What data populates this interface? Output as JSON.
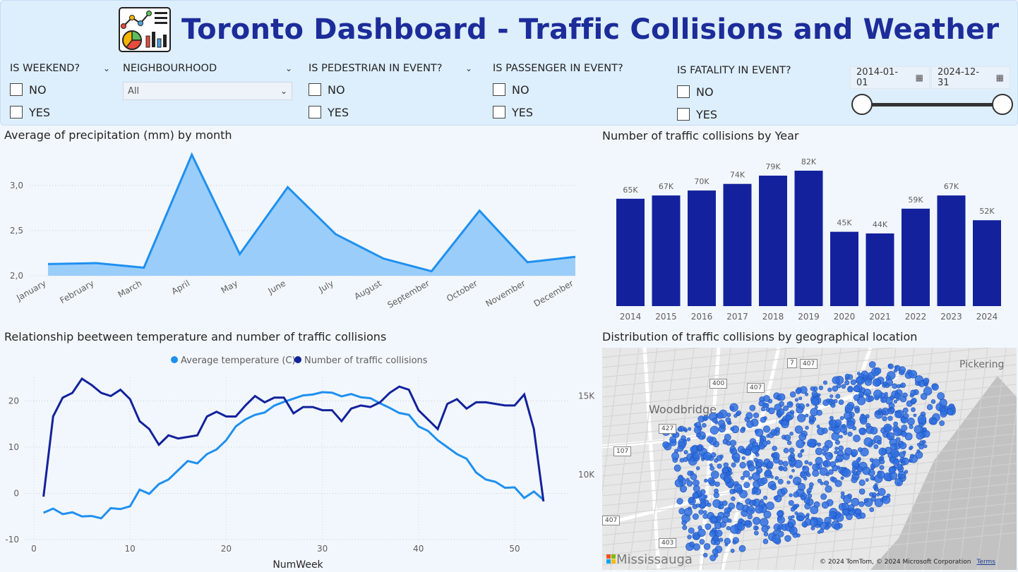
{
  "header": {
    "title": "Toronto Dashboard - Traffic Collisions and Weather",
    "logo_icon": "analytics-dashboard-icon"
  },
  "filters": {
    "weekend": {
      "label": "IS WEEKEND?",
      "options": [
        "NO",
        "YES"
      ]
    },
    "neighbourhood": {
      "label": "NEIGHBOURHOOD",
      "value": "All"
    },
    "pedestrian": {
      "label": "IS PEDESTRIAN IN EVENT?",
      "options": [
        "NO",
        "YES"
      ]
    },
    "passenger": {
      "label": "IS PASSENGER IN EVENT?",
      "options": [
        "NO",
        "YES"
      ]
    },
    "fatality": {
      "label": "IS FATALITY IN EVENT?",
      "options": [
        "NO",
        "YES"
      ]
    },
    "date_range": {
      "start": "2014-01-01",
      "end": "2024-12-31",
      "slider_start": 0.0,
      "slider_end": 1.0
    }
  },
  "charts": {
    "precip_title": "Average of precipitation (mm) by month",
    "collisions_title": "Number of traffic collisions by Year",
    "relationship_title": "Relationship beetween temperature and number of traffic collisions",
    "map_title": "Distribution of traffic collisions by geographical location"
  },
  "map": {
    "labels": {
      "woodbridge": "Woodbridge",
      "pickering": "Pickering",
      "mississauga": "Mississauga"
    },
    "shields": [
      "7",
      "407",
      "400",
      "407",
      "427",
      "107",
      "407",
      "403"
    ],
    "credit": "© 2024 TomTom, © 2024 Microsoft Corporation",
    "terms": "Terms",
    "point_color": "#2f6fe0"
  },
  "chart_data": [
    {
      "type": "area",
      "title": "Average of precipitation (mm) by month",
      "categories": [
        "January",
        "February",
        "March",
        "April",
        "May",
        "June",
        "July",
        "August",
        "September",
        "October",
        "November",
        "December"
      ],
      "values": [
        2.13,
        2.14,
        2.09,
        3.34,
        2.24,
        2.98,
        2.46,
        2.19,
        2.05,
        2.72,
        2.15,
        2.21
      ],
      "yticks": [
        "2,0",
        "2,5",
        "3,0"
      ],
      "ylim": [
        2.0,
        3.35
      ],
      "color": "#1e90f0",
      "fill": "#9bcdfa"
    },
    {
      "type": "bar",
      "title": "Number of traffic collisions by Year",
      "categories": [
        "2014",
        "2015",
        "2016",
        "2017",
        "2018",
        "2019",
        "2020",
        "2021",
        "2022",
        "2023",
        "2024"
      ],
      "values": [
        65,
        67,
        70,
        74,
        79,
        82,
        45,
        44,
        59,
        67,
        52
      ],
      "data_labels": [
        "65K",
        "67K",
        "70K",
        "74K",
        "79K",
        "82K",
        "45K",
        "44K",
        "59K",
        "67K",
        "52K"
      ],
      "ylim": [
        0,
        82
      ],
      "color": "#13229c"
    },
    {
      "type": "line",
      "title": "Relationship beetween temperature and number of traffic collisions",
      "xlabel": "NumWeek",
      "xticks": [
        "0",
        "10",
        "20",
        "30",
        "40",
        "50"
      ],
      "y1ticks": [
        "-10",
        "0",
        "10",
        "20"
      ],
      "y2ticks": [
        "10K",
        "15K"
      ],
      "y1lim": [
        -10,
        25
      ],
      "y2lim": [
        7500,
        17000
      ],
      "series": [
        {
          "name": "Average temperature (C)",
          "axis": "left",
          "color": "#1e90f0",
          "x": [
            1,
            2,
            3,
            4,
            5,
            6,
            7,
            8,
            9,
            10,
            11,
            12,
            13,
            14,
            15,
            16,
            17,
            18,
            19,
            20,
            21,
            22,
            23,
            24,
            25,
            26,
            27,
            28,
            29,
            30,
            31,
            32,
            33,
            34,
            35,
            36,
            37,
            38,
            39,
            40,
            41,
            42,
            43,
            44,
            45,
            46,
            47,
            48,
            49,
            50,
            51,
            52,
            53
          ],
          "values": [
            -4.2,
            -3.3,
            -4.5,
            -4.1,
            -5,
            -4.9,
            -5.4,
            -3.2,
            -3.4,
            -2.8,
            0.8,
            -0.1,
            2,
            3,
            5,
            7,
            6.5,
            8.5,
            9.5,
            11.5,
            14.5,
            16,
            17,
            17.5,
            19,
            19.8,
            20.5,
            21.2,
            21.4,
            21.9,
            21.8,
            21,
            21.5,
            20.8,
            20.6,
            19.5,
            18.5,
            17.4,
            17,
            14.5,
            13.5,
            11.5,
            10,
            8.5,
            7.5,
            4.5,
            3,
            2.5,
            1.2,
            1.3,
            -1,
            0.4,
            -1.4
          ]
        },
        {
          "name": "Number of traffic collisions",
          "axis": "right",
          "color": "#13229c",
          "x": [
            1,
            2,
            3,
            4,
            5,
            6,
            7,
            8,
            9,
            10,
            11,
            12,
            13,
            14,
            15,
            16,
            17,
            18,
            19,
            20,
            21,
            22,
            23,
            24,
            25,
            26,
            27,
            28,
            29,
            30,
            31,
            32,
            33,
            34,
            35,
            36,
            37,
            38,
            39,
            40,
            41,
            42,
            43,
            44,
            45,
            46,
            47,
            48,
            49,
            50,
            51,
            52,
            53
          ],
          "values": [
            8600,
            13700,
            14900,
            15200,
            16100,
            15700,
            15200,
            15000,
            15400,
            14800,
            13400,
            12900,
            11900,
            12500,
            12300,
            12400,
            12500,
            13700,
            14000,
            13700,
            13700,
            14400,
            15000,
            14600,
            14900,
            14900,
            13900,
            14300,
            14300,
            14100,
            14100,
            13400,
            14200,
            14400,
            14300,
            14600,
            15200,
            15600,
            15400,
            14100,
            13500,
            12900,
            14500,
            14800,
            14200,
            14600,
            14600,
            14500,
            14400,
            14400,
            15100,
            12900,
            8300
          ]
        }
      ]
    }
  ]
}
